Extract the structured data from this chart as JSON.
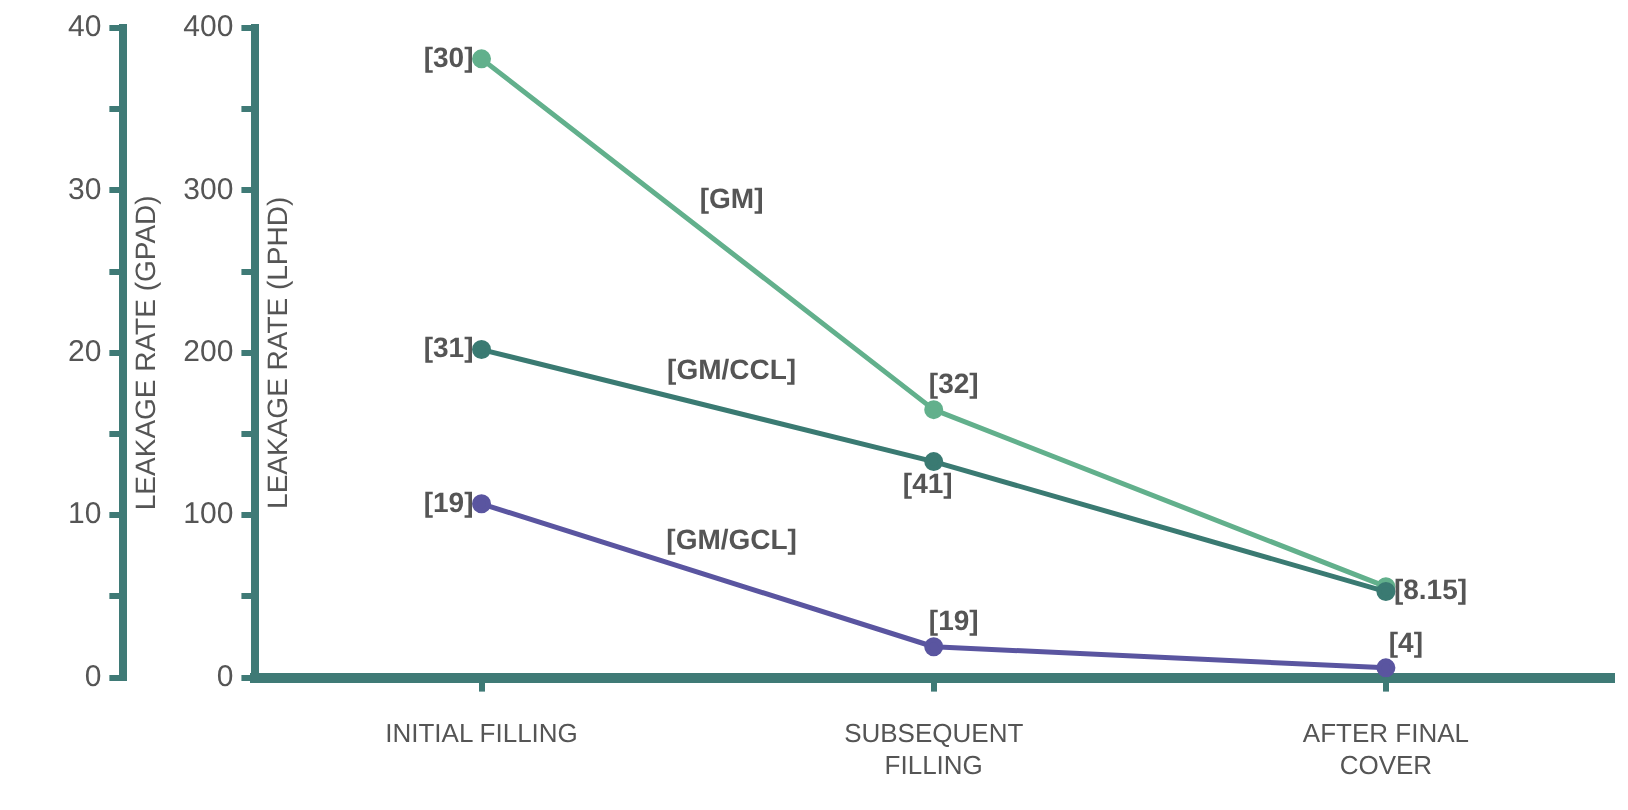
{
  "chart_data": {
    "type": "line",
    "categories": [
      "INITIAL FILLING",
      "SUBSEQUENT FILLING",
      "AFTER FINAL COVER"
    ],
    "series": [
      {
        "name": "[GM]",
        "color": "#62b08c",
        "values": [
          381,
          165,
          56
        ]
      },
      {
        "name": "[GM/CCL]",
        "color": "#3a7a72",
        "values": [
          202,
          133,
          53
        ]
      },
      {
        "name": "[GM/GCL]",
        "color": "#5a55a0",
        "values": [
          107,
          19,
          6
        ]
      }
    ],
    "ylabel": "LEAKAGE RATE (LPHD)",
    "y2label": "LEAKAGE RATE (GPAD)",
    "ylim": [
      0,
      400
    ],
    "yticks": [
      0,
      {
        "value": 50,
        "label": null
      },
      100,
      {
        "value": 150,
        "label": null
      },
      200,
      {
        "value": 250,
        "label": null
      },
      300,
      {
        "value": 350,
        "label": null
      },
      400
    ],
    "y2lim": [
      0,
      40
    ],
    "y2ticks": [
      0,
      {
        "value": 5,
        "label": null
      },
      10,
      {
        "value": 15,
        "label": null
      },
      20,
      {
        "value": 25,
        "label": null
      },
      30,
      {
        "value": 35,
        "label": null
      },
      40
    ],
    "annotations": [
      {
        "text": "[30]",
        "x": "INITIAL FILLING",
        "y": 381
      },
      {
        "text": "[31]",
        "x": "INITIAL FILLING",
        "y": 202
      },
      {
        "text": "[19]",
        "x": "INITIAL FILLING",
        "y": 107
      },
      {
        "text": "[32]",
        "x": "SUBSEQUENT FILLING",
        "y": 165
      },
      {
        "text": "[41]",
        "x": "SUBSEQUENT FILLING",
        "y": 133
      },
      {
        "text": "[19]",
        "x": "SUBSEQUENT FILLING",
        "y": 19
      },
      {
        "text": "[8.15]",
        "x": "AFTER FINAL COVER",
        "y": 53
      },
      {
        "text": "[4]",
        "x": "AFTER FINAL COVER",
        "y": 6
      }
    ],
    "grid": false,
    "legend": false,
    "marker": "circle",
    "line_style": "solid"
  }
}
